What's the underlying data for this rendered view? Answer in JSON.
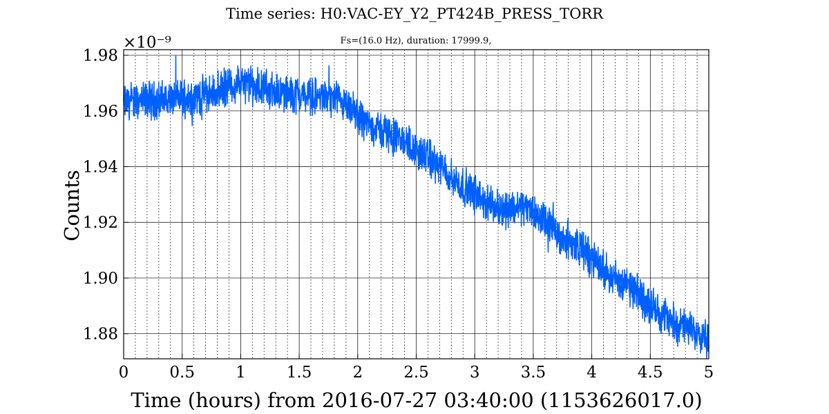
{
  "chart_data": {
    "type": "line",
    "title": "Time series: H0:VAC-EY_Y2_PT424B_PRESS_TORR",
    "subtitle": "Fs=(16.0 Hz), duration: 17999.9,",
    "xlabel": "Time (hours) from 2016-07-27 03:40:00 (1153626017.0)",
    "ylabel": "Counts",
    "y_multiplier": "×10⁻⁹",
    "xlim": [
      0,
      5
    ],
    "ylim": [
      1.871,
      1.982
    ],
    "x_ticks": [
      0,
      0.5,
      1,
      1.5,
      2,
      2.5,
      3,
      3.5,
      4,
      4.5,
      5
    ],
    "x_tick_labels": [
      "0",
      "0.5",
      "1",
      "1.5",
      "2",
      "2.5",
      "3",
      "3.5",
      "4",
      "4.5",
      "5"
    ],
    "y_ticks": [
      1.88,
      1.9,
      1.92,
      1.94,
      1.96,
      1.98
    ],
    "y_tick_labels": [
      "1.88",
      "1.90",
      "1.92",
      "1.94",
      "1.96",
      "1.98"
    ],
    "grid": true,
    "legend": "none",
    "series": [
      {
        "color": "#0060ff",
        "x": [
          0,
          0.1,
          0.2,
          0.3,
          0.4,
          0.5,
          0.6,
          0.7,
          0.8,
          0.9,
          1.0,
          1.1,
          1.2,
          1.3,
          1.4,
          1.5,
          1.6,
          1.7,
          1.8,
          1.9,
          2.0,
          2.1,
          2.2,
          2.3,
          2.4,
          2.5,
          2.6,
          2.7,
          2.8,
          2.9,
          3.0,
          3.1,
          3.2,
          3.3,
          3.4,
          3.5,
          3.6,
          3.7,
          3.8,
          3.9,
          4.0,
          4.1,
          4.2,
          4.3,
          4.4,
          4.5,
          4.6,
          4.7,
          4.8,
          4.9,
          5.0
        ],
        "y": [
          1.963,
          1.963,
          1.964,
          1.964,
          1.964,
          1.965,
          1.965,
          1.966,
          1.967,
          1.969,
          1.97,
          1.969,
          1.968,
          1.967,
          1.966,
          1.966,
          1.965,
          1.965,
          1.964,
          1.961,
          1.958,
          1.955,
          1.953,
          1.951,
          1.949,
          1.946,
          1.943,
          1.94,
          1.936,
          1.933,
          1.93,
          1.927,
          1.925,
          1.925,
          1.926,
          1.924,
          1.92,
          1.916,
          1.913,
          1.911,
          1.907,
          1.903,
          1.9,
          1.897,
          1.894,
          1.89,
          1.887,
          1.884,
          1.882,
          1.881,
          1.879
        ]
      }
    ]
  }
}
